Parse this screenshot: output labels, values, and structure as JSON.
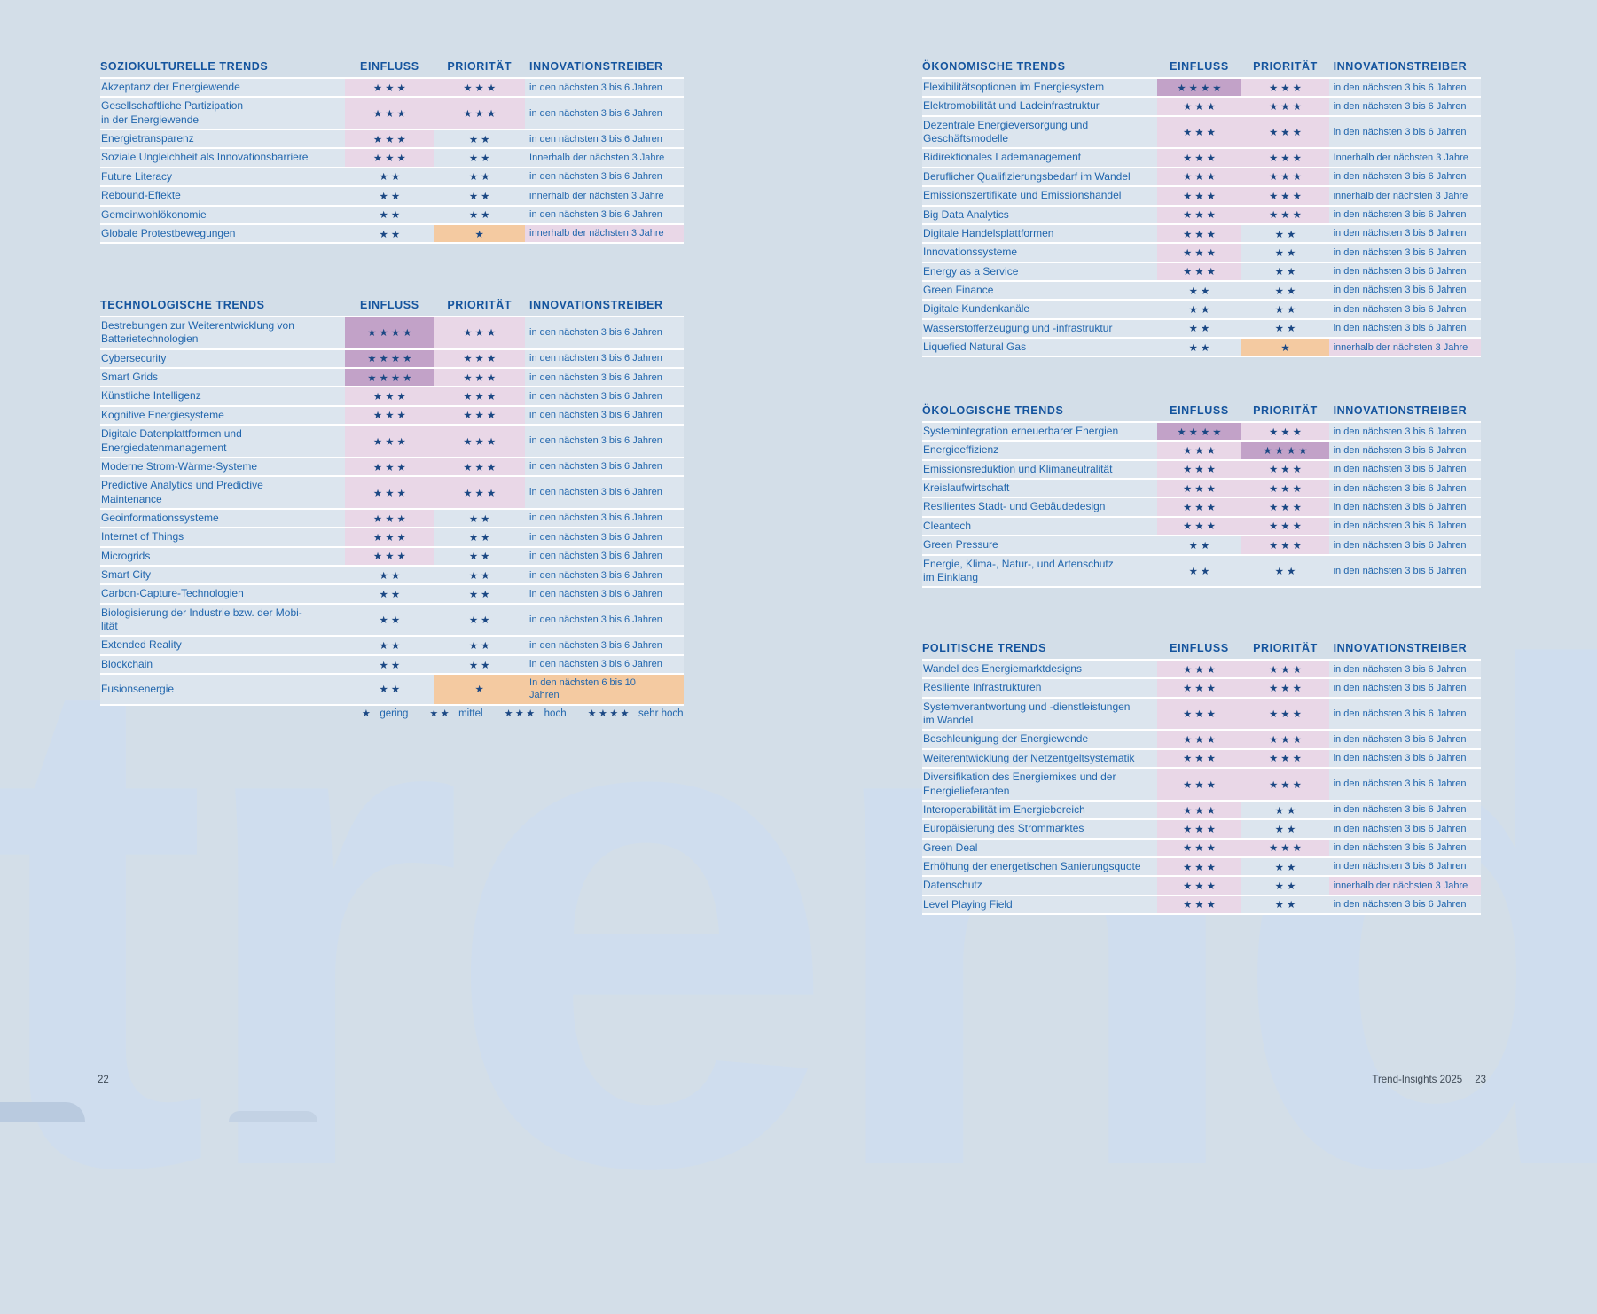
{
  "page": {
    "watermark": "trend",
    "left_page_number": "22",
    "right_page_number": "23",
    "footer_right": "Trend-Insights 2025"
  },
  "columns": {
    "einfluss": "EINFLUSS",
    "prioritaet": "PRIORITÄT",
    "innovationstreiber": "INNOVATIONSTREIBER"
  },
  "legend": [
    {
      "stars": 1,
      "label": "gering"
    },
    {
      "stars": 2,
      "label": "mittel"
    },
    {
      "stars": 3,
      "label": "hoch"
    },
    {
      "stars": 4,
      "label": "sehr hoch"
    }
  ],
  "highlight_colors": {
    "stars_4": "#c2a2c8",
    "stars_3": "#e9d7e7",
    "stars_1": "#f4caa1",
    "row_background": "#dce5ee"
  },
  "tables": [
    {
      "title": "SOZIOKULTURELLE TRENDS",
      "rows": [
        {
          "label": "Akzeptanz der Energiewende",
          "einfluss": 3,
          "prioritaet": 3,
          "treiber": "in den nächsten 3 bis 6 Jahren"
        },
        {
          "label": "Gesellschaftliche Partizipation\nin der Energiewende",
          "einfluss": 3,
          "prioritaet": 3,
          "treiber": "in den nächsten 3 bis 6 Jahren"
        },
        {
          "label": "Energietransparenz",
          "einfluss": 3,
          "prioritaet": 2,
          "treiber": "in den nächsten 3 bis 6 Jahren"
        },
        {
          "label": "Soziale Ungleichheit als Innovationsbarriere",
          "einfluss": 3,
          "prioritaet": 2,
          "treiber": "Innerhalb der nächsten 3 Jahre"
        },
        {
          "label": "Future Literacy",
          "einfluss": 2,
          "prioritaet": 2,
          "treiber": "in den nächsten 3 bis 6 Jahren"
        },
        {
          "label": "Rebound-Effekte",
          "einfluss": 2,
          "prioritaet": 2,
          "treiber": "innerhalb der nächsten 3 Jahre"
        },
        {
          "label": "Gemeinwohlökonomie",
          "einfluss": 2,
          "prioritaet": 2,
          "treiber": "in den nächsten 3 bis 6 Jahren"
        },
        {
          "label": "Globale Protestbewegungen",
          "einfluss": 2,
          "prioritaet": 1,
          "treiber": "innerhalb der nächsten 3 Jahre",
          "treiber_hl": "pink"
        }
      ]
    },
    {
      "title": "TECHNOLOGISCHE TRENDS",
      "rows": [
        {
          "label": "Bestrebungen zur Weiterentwicklung von\nBatterietechnologien",
          "einfluss": 4,
          "prioritaet": 3,
          "treiber": "in den nächsten 3 bis 6 Jahren"
        },
        {
          "label": "Cybersecurity",
          "einfluss": 4,
          "prioritaet": 3,
          "treiber": "in den nächsten 3 bis 6 Jahren"
        },
        {
          "label": "Smart Grids",
          "einfluss": 4,
          "prioritaet": 3,
          "treiber": "in den nächsten 3 bis 6 Jahren"
        },
        {
          "label": "Künstliche Intelligenz",
          "einfluss": 3,
          "prioritaet": 3,
          "treiber": "in den nächsten 3 bis 6 Jahren"
        },
        {
          "label": "Kognitive Energiesysteme",
          "einfluss": 3,
          "prioritaet": 3,
          "treiber": "in den nächsten 3 bis 6 Jahren"
        },
        {
          "label": "Digitale Datenplattformen und\nEnergiedatenmanagement",
          "einfluss": 3,
          "prioritaet": 3,
          "treiber": "in den nächsten 3 bis 6 Jahren"
        },
        {
          "label": "Moderne Strom-Wärme-Systeme",
          "einfluss": 3,
          "prioritaet": 3,
          "treiber": "in den nächsten 3 bis 6 Jahren"
        },
        {
          "label": "Predictive Analytics und Predictive\nMaintenance",
          "einfluss": 3,
          "prioritaet": 3,
          "treiber": "in den nächsten 3 bis 6 Jahren"
        },
        {
          "label": "Geoinformationssysteme",
          "einfluss": 3,
          "prioritaet": 2,
          "treiber": "in den nächsten 3 bis 6 Jahren"
        },
        {
          "label": "Internet of Things",
          "einfluss": 3,
          "prioritaet": 2,
          "treiber": "in den nächsten 3 bis 6 Jahren"
        },
        {
          "label": "Microgrids",
          "einfluss": 3,
          "prioritaet": 2,
          "treiber": "in den nächsten 3 bis 6 Jahren"
        },
        {
          "label": "Smart City",
          "einfluss": 2,
          "prioritaet": 2,
          "treiber": "in den nächsten 3 bis 6 Jahren"
        },
        {
          "label": "Carbon-Capture-Technologien",
          "einfluss": 2,
          "prioritaet": 2,
          "treiber": "in den nächsten 3 bis 6 Jahren"
        },
        {
          "label": "Biologisierung der Industrie bzw. der Mobi-\nlität",
          "einfluss": 2,
          "prioritaet": 2,
          "treiber": "in den nächsten 3 bis 6 Jahren"
        },
        {
          "label": "Extended Reality",
          "einfluss": 2,
          "prioritaet": 2,
          "treiber": "in den nächsten 3 bis 6 Jahren"
        },
        {
          "label": "Blockchain",
          "einfluss": 2,
          "prioritaet": 2,
          "treiber": "in den nächsten 3 bis 6 Jahren"
        },
        {
          "label": "Fusionsenergie",
          "einfluss": 2,
          "prioritaet": 1,
          "treiber": "In den nächsten 6 bis 10\nJahren",
          "treiber_hl": "orange"
        }
      ]
    },
    {
      "title": "ÖKONOMISCHE TRENDS",
      "rows": [
        {
          "label": "Flexibilitätsoptionen im Energiesystem",
          "einfluss": 4,
          "prioritaet": 3,
          "treiber": "in den nächsten 3 bis 6 Jahren"
        },
        {
          "label": "Elektromobilität und Ladeinfrastruktur",
          "einfluss": 3,
          "prioritaet": 3,
          "treiber": "in den nächsten 3 bis 6 Jahren"
        },
        {
          "label": "Dezentrale Energieversorgung und\nGeschäftsmodelle",
          "einfluss": 3,
          "prioritaet": 3,
          "treiber": "in den nächsten 3 bis 6 Jahren"
        },
        {
          "label": "Bidirektionales Lademanagement",
          "einfluss": 3,
          "prioritaet": 3,
          "treiber": "Innerhalb der nächsten 3 Jahre"
        },
        {
          "label": "Beruflicher Qualifizierungsbedarf im Wandel",
          "einfluss": 3,
          "prioritaet": 3,
          "treiber": "in den nächsten 3 bis 6 Jahren"
        },
        {
          "label": "Emissionszertifikate und Emissionshandel",
          "einfluss": 3,
          "prioritaet": 3,
          "treiber": "innerhalb der nächsten 3 Jahre"
        },
        {
          "label": "Big Data Analytics",
          "einfluss": 3,
          "prioritaet": 3,
          "treiber": "in den nächsten 3 bis 6 Jahren"
        },
        {
          "label": "Digitale Handelsplattformen",
          "einfluss": 3,
          "prioritaet": 2,
          "treiber": "in den nächsten 3 bis 6 Jahren"
        },
        {
          "label": "Innovationssysteme",
          "einfluss": 3,
          "prioritaet": 2,
          "treiber": "in den nächsten 3 bis 6 Jahren"
        },
        {
          "label": "Energy as a Service",
          "einfluss": 3,
          "prioritaet": 2,
          "treiber": "in den nächsten 3 bis 6 Jahren"
        },
        {
          "label": "Green Finance",
          "einfluss": 2,
          "prioritaet": 2,
          "treiber": "in den nächsten 3 bis 6 Jahren"
        },
        {
          "label": "Digitale Kundenkanäle",
          "einfluss": 2,
          "prioritaet": 2,
          "treiber": "in den nächsten 3 bis 6 Jahren"
        },
        {
          "label": "Wasserstofferzeugung und -infrastruktur",
          "einfluss": 2,
          "prioritaet": 2,
          "treiber": "in den nächsten 3 bis 6 Jahren"
        },
        {
          "label": "Liquefied Natural Gas",
          "einfluss": 2,
          "prioritaet": 1,
          "treiber": "innerhalb der nächsten 3 Jahre",
          "treiber_hl": "pink"
        }
      ]
    },
    {
      "title": "ÖKOLOGISCHE TRENDS",
      "rows": [
        {
          "label": "Systemintegration erneuerbarer Energien",
          "einfluss": 4,
          "prioritaet": 3,
          "treiber": "in den nächsten 3 bis 6 Jahren"
        },
        {
          "label": "Energieeffizienz",
          "einfluss": 3,
          "prioritaet": 4,
          "treiber": "in den nächsten 3 bis 6 Jahren"
        },
        {
          "label": "Emissionsreduktion und Klimaneutralität",
          "einfluss": 3,
          "prioritaet": 3,
          "treiber": "in den nächsten 3 bis 6 Jahren"
        },
        {
          "label": "Kreislaufwirtschaft",
          "einfluss": 3,
          "prioritaet": 3,
          "treiber": "in den nächsten 3 bis 6 Jahren"
        },
        {
          "label": "Resilientes Stadt- und Gebäudedesign",
          "einfluss": 3,
          "prioritaet": 3,
          "treiber": "in den nächsten 3 bis 6 Jahren"
        },
        {
          "label": "Cleantech",
          "einfluss": 3,
          "prioritaet": 3,
          "treiber": "in den nächsten 3 bis 6 Jahren"
        },
        {
          "label": "Green Pressure",
          "einfluss": 2,
          "prioritaet": 3,
          "treiber": "in den nächsten 3 bis 6 Jahren"
        },
        {
          "label": "Energie, Klima-, Natur-, und Artenschutz\nim Einklang",
          "einfluss": 2,
          "prioritaet": 2,
          "treiber": "in den nächsten 3 bis 6 Jahren"
        }
      ]
    },
    {
      "title": "POLITISCHE TRENDS",
      "rows": [
        {
          "label": "Wandel des Energiemarktdesigns",
          "einfluss": 3,
          "prioritaet": 3,
          "treiber": "in den nächsten 3 bis 6 Jahren"
        },
        {
          "label": "Resiliente Infrastrukturen",
          "einfluss": 3,
          "prioritaet": 3,
          "treiber": "in den nächsten 3 bis 6 Jahren"
        },
        {
          "label": "Systemverantwortung und -dienstleistungen\nim Wandel",
          "einfluss": 3,
          "prioritaet": 3,
          "treiber": "in den nächsten 3 bis 6 Jahren"
        },
        {
          "label": "Beschleunigung der Energiewende",
          "einfluss": 3,
          "prioritaet": 3,
          "treiber": "in den nächsten 3 bis 6 Jahren"
        },
        {
          "label": "Weiterentwicklung der Netzentgeltsystematik",
          "einfluss": 3,
          "prioritaet": 3,
          "treiber": "in den nächsten 3 bis 6 Jahren"
        },
        {
          "label": "Diversifikation des Energiemixes und der\nEnergielieferanten",
          "einfluss": 3,
          "prioritaet": 3,
          "treiber": "in den nächsten 3 bis 6 Jahren"
        },
        {
          "label": "Interoperabilität im Energiebereich",
          "einfluss": 3,
          "prioritaet": 2,
          "treiber": "in den nächsten 3 bis 6 Jahren"
        },
        {
          "label": "Europäisierung des Strommarktes",
          "einfluss": 3,
          "prioritaet": 2,
          "treiber": "in den nächsten 3 bis 6 Jahren"
        },
        {
          "label": "Green Deal",
          "einfluss": 3,
          "prioritaet": 3,
          "treiber": "in den nächsten 3 bis 6 Jahren"
        },
        {
          "label": "Erhöhung der energetischen Sanierungsquote",
          "einfluss": 3,
          "prioritaet": 2,
          "treiber": "in den nächsten 3 bis 6 Jahren"
        },
        {
          "label": "Datenschutz",
          "einfluss": 3,
          "prioritaet": 2,
          "treiber": "innerhalb der nächsten 3 Jahre",
          "treiber_hl": "pink"
        },
        {
          "label": "Level Playing Field",
          "einfluss": 3,
          "prioritaet": 2,
          "treiber": "in den nächsten 3 bis 6 Jahren"
        }
      ]
    }
  ]
}
